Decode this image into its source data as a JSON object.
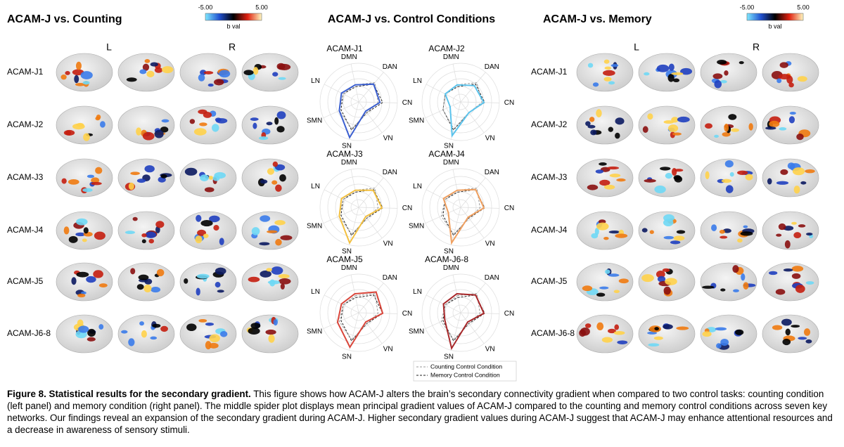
{
  "left_panel": {
    "title": "ACAM-J vs. Counting",
    "colorbar": {
      "min": "-5.00",
      "max": "5.00",
      "label": "b val"
    },
    "hemispheres": [
      "L",
      "R"
    ],
    "rows": [
      "ACAM-J1",
      "ACAM-J2",
      "ACAM-J3",
      "ACAM-J4",
      "ACAM-J5",
      "ACAM-J6-8"
    ]
  },
  "middle_panel": {
    "title": "ACAM-J vs. Control Conditions",
    "legend": [
      {
        "name": "Counting Control Condition",
        "color": "#999999"
      },
      {
        "name": "Memory Control Condition",
        "color": "#222222"
      }
    ]
  },
  "right_panel": {
    "title": "ACAM-J vs. Memory",
    "colorbar": {
      "min": "-5.00",
      "max": "5.00",
      "label": "b val"
    },
    "hemispheres": [
      "L",
      "R"
    ],
    "rows": [
      "ACAM-J1",
      "ACAM-J2",
      "ACAM-J3",
      "ACAM-J4",
      "ACAM-J5",
      "ACAM-J6-8"
    ]
  },
  "chart_data": [
    {
      "type": "radar",
      "title": "ACAM-J1",
      "categories": [
        "DMN",
        "DAN",
        "CN",
        "VN",
        "SN",
        "SMN",
        "LN"
      ],
      "rlim": [
        0,
        1
      ],
      "series": [
        {
          "color": "#3b5fd0",
          "values": [
            0.45,
            0.6,
            0.55,
            0.3,
            0.95,
            0.55,
            0.5
          ]
        },
        {
          "color": "#999999",
          "dash": true,
          "values": [
            0.45,
            0.65,
            0.5,
            0.35,
            0.72,
            0.55,
            0.45
          ]
        },
        {
          "color": "#222222",
          "dash": true,
          "values": [
            0.4,
            0.6,
            0.62,
            0.35,
            0.75,
            0.5,
            0.45
          ]
        }
      ]
    },
    {
      "type": "radar",
      "title": "ACAM-J2",
      "categories": [
        "DMN",
        "DAN",
        "CN",
        "VN",
        "SN",
        "SMN",
        "LN"
      ],
      "rlim": [
        0,
        1
      ],
      "series": [
        {
          "color": "#5bc3ec",
          "values": [
            0.45,
            0.55,
            0.6,
            0.35,
            0.9,
            0.3,
            0.45
          ]
        },
        {
          "color": "#999999",
          "dash": true,
          "values": [
            0.45,
            0.65,
            0.55,
            0.35,
            0.72,
            0.5,
            0.45
          ]
        },
        {
          "color": "#222222",
          "dash": true,
          "values": [
            0.4,
            0.6,
            0.62,
            0.35,
            0.75,
            0.5,
            0.45
          ]
        }
      ]
    },
    {
      "type": "radar",
      "title": "ACAM-J3",
      "categories": [
        "DMN",
        "DAN",
        "CN",
        "VN",
        "SN",
        "SMN",
        "LN"
      ],
      "rlim": [
        0,
        1
      ],
      "series": [
        {
          "color": "#f3c040",
          "values": [
            0.45,
            0.58,
            0.6,
            0.3,
            0.95,
            0.55,
            0.5
          ]
        },
        {
          "color": "#999999",
          "dash": true,
          "values": [
            0.45,
            0.65,
            0.5,
            0.35,
            0.72,
            0.55,
            0.45
          ]
        },
        {
          "color": "#222222",
          "dash": true,
          "values": [
            0.4,
            0.6,
            0.62,
            0.35,
            0.75,
            0.5,
            0.45
          ]
        }
      ]
    },
    {
      "type": "radar",
      "title": "ACAM-J4",
      "categories": [
        "DMN",
        "DAN",
        "CN",
        "VN",
        "SN",
        "SMN",
        "LN"
      ],
      "rlim": [
        0,
        1
      ],
      "series": [
        {
          "color": "#f0a060",
          "values": [
            0.45,
            0.6,
            0.6,
            0.32,
            0.95,
            0.35,
            0.5
          ]
        },
        {
          "color": "#999999",
          "dash": true,
          "values": [
            0.45,
            0.65,
            0.5,
            0.35,
            0.72,
            0.55,
            0.45
          ]
        },
        {
          "color": "#222222",
          "dash": true,
          "values": [
            0.4,
            0.6,
            0.62,
            0.35,
            0.75,
            0.5,
            0.45
          ]
        }
      ]
    },
    {
      "type": "radar",
      "title": "ACAM-J5",
      "categories": [
        "DMN",
        "DAN",
        "CN",
        "VN",
        "SN",
        "SMN",
        "LN"
      ],
      "rlim": [
        0,
        1
      ],
      "series": [
        {
          "color": "#d9453a",
          "values": [
            0.5,
            0.7,
            0.62,
            0.3,
            0.92,
            0.6,
            0.5
          ]
        },
        {
          "color": "#999999",
          "dash": true,
          "values": [
            0.45,
            0.65,
            0.5,
            0.35,
            0.72,
            0.55,
            0.45
          ]
        },
        {
          "color": "#222222",
          "dash": true,
          "values": [
            0.4,
            0.6,
            0.62,
            0.35,
            0.75,
            0.5,
            0.45
          ]
        }
      ]
    },
    {
      "type": "radar",
      "title": "ACAM-J6-8",
      "categories": [
        "DMN",
        "DAN",
        "CN",
        "VN",
        "SN",
        "SMN",
        "LN"
      ],
      "rlim": [
        0,
        1
      ],
      "series": [
        {
          "color": "#a8282a",
          "values": [
            0.5,
            0.6,
            0.6,
            0.3,
            0.95,
            0.45,
            0.5
          ]
        },
        {
          "color": "#999999",
          "dash": true,
          "values": [
            0.45,
            0.65,
            0.5,
            0.35,
            0.72,
            0.55,
            0.45
          ]
        },
        {
          "color": "#222222",
          "dash": true,
          "values": [
            0.4,
            0.6,
            0.62,
            0.35,
            0.75,
            0.5,
            0.45
          ]
        }
      ]
    }
  ],
  "caption": {
    "label": "Figure 8. Statistical results for the secondary gradient.",
    "text": "This figure shows how ACAM-J alters the brain’s secondary connectivity gradient when compared to two control tasks: counting condition (left panel) and memory condition (right panel). The middle spider plot displays mean principal gradient values of ACAM-J compared to the counting and memory control conditions across seven key networks. Our findings reveal an expansion of the secondary gradient during ACAM-J. Higher secondary gradient values during ACAM-J suggest that ACAM-J may enhance attentional resources and a decrease in awareness of sensory stimuli."
  }
}
